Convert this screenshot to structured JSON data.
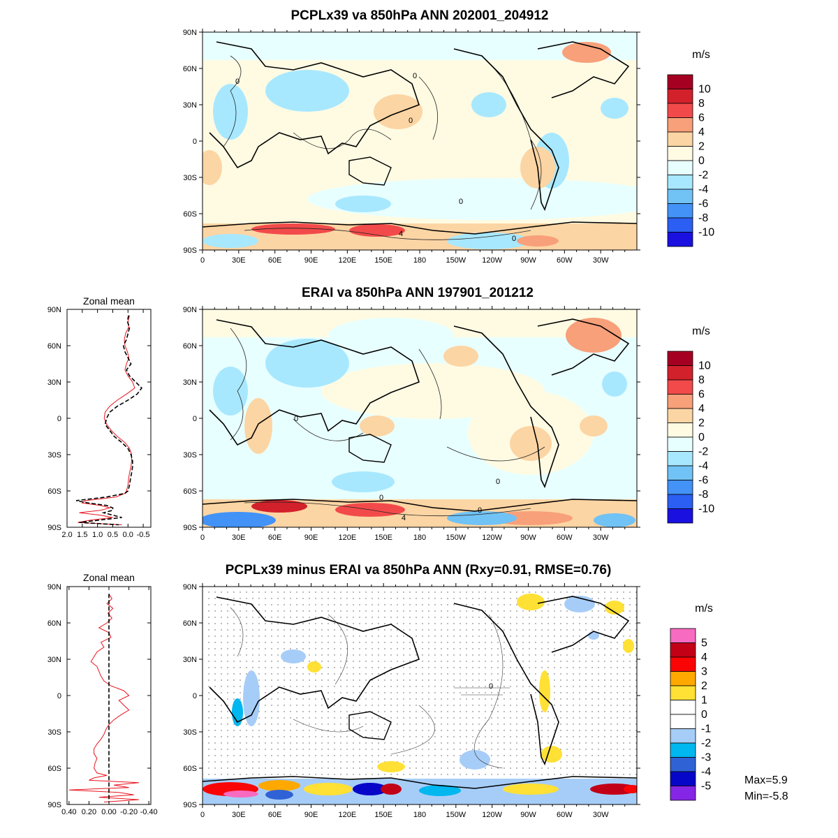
{
  "chart_data": [
    {
      "type": "heatmap",
      "title": "PCPLx39 va 850hPa ANN 202001_204912",
      "x_ticks": [
        "0",
        "30E",
        "60E",
        "90E",
        "120E",
        "150E",
        "180",
        "150W",
        "120W",
        "90W",
        "60W",
        "30W"
      ],
      "y_ticks": [
        "90N",
        "60N",
        "30N",
        "0",
        "30S",
        "60S",
        "90S"
      ],
      "colorbar": {
        "unit": "m/s",
        "labels": [
          "10",
          "8",
          "6",
          "4",
          "2",
          "0",
          "-2",
          "-4",
          "-6",
          "-8",
          "-10"
        ],
        "colors": [
          "#a50021",
          "#d3212c",
          "#f24a4a",
          "#f7a07a",
          "#fcd5a4",
          "#fffbe3",
          "#e8ffff",
          "#a8e8ff",
          "#71c2f5",
          "#4292f7",
          "#2b5ef2",
          "#1a10e0"
        ]
      },
      "contour_labels": [
        "0",
        "0",
        "0",
        "0",
        "4",
        "0"
      ]
    },
    {
      "type": "heatmap",
      "title": "ERAI va 850hPa ANN 197901_201212",
      "x_ticks": [
        "0",
        "30E",
        "60E",
        "90E",
        "120E",
        "150E",
        "180",
        "150W",
        "120W",
        "90W",
        "60W",
        "30W"
      ],
      "y_ticks": [
        "90N",
        "60N",
        "30N",
        "0",
        "30S",
        "60S",
        "90S"
      ],
      "colorbar": {
        "unit": "m/s",
        "labels": [
          "10",
          "8",
          "6",
          "4",
          "2",
          "0",
          "-2",
          "-4",
          "-6",
          "-8",
          "-10"
        ],
        "colors": [
          "#a50021",
          "#d3212c",
          "#f24a4a",
          "#f7a07a",
          "#fcd5a4",
          "#fffbe3",
          "#e8ffff",
          "#a8e8ff",
          "#71c2f5",
          "#4292f7",
          "#2b5ef2",
          "#1a10e0"
        ]
      },
      "contour_labels": [
        "0",
        "0",
        "0",
        "0",
        "4"
      ]
    },
    {
      "type": "heatmap",
      "title": "PCPLx39 minus ERAI va 850hPa ANN (Rxy=0.91, RMSE=0.76)",
      "x_ticks": [
        "0",
        "30E",
        "60E",
        "90E",
        "120E",
        "150E",
        "180",
        "150W",
        "120W",
        "90W",
        "60W",
        "30W"
      ],
      "y_ticks": [
        "90N",
        "60N",
        "30N",
        "0",
        "30S",
        "60S",
        "90S"
      ],
      "colorbar": {
        "unit": "m/s",
        "labels": [
          "5",
          "4",
          "3",
          "2",
          "1",
          "0",
          "-1",
          "-2",
          "-3",
          "-4",
          "-5"
        ],
        "colors": [
          "#f76bc0",
          "#c20016",
          "#fa0505",
          "#ffa800",
          "#ffe035",
          "#ffffff",
          "#ffffff",
          "#a6cdf7",
          "#00b7ef",
          "#2f62d5",
          "#0606c8",
          "#8526e6"
        ]
      },
      "contour_labels": [
        "0"
      ],
      "stats": [
        "Max=5.9",
        "Min=-5.8"
      ]
    },
    {
      "type": "line",
      "title": "Zonal mean",
      "y_ticks": [
        "90N",
        "60N",
        "30N",
        "0",
        "30S",
        "60S",
        "90S"
      ],
      "x_ticks": [
        "2.0",
        "1.5",
        "1.0",
        "0.5",
        "0.0",
        "-0.5"
      ],
      "xlim": [
        2.0,
        -0.75
      ],
      "series": [
        {
          "color": "#e8141e",
          "style": "solid",
          "lat": [
            85,
            80,
            75,
            70,
            65,
            60,
            55,
            50,
            45,
            40,
            35,
            30,
            25,
            20,
            15,
            10,
            5,
            0,
            -5,
            -10,
            -15,
            -20,
            -25,
            -30,
            -35,
            -40,
            -45,
            -50,
            -55,
            -60,
            -62,
            -65,
            -68,
            -70,
            -72,
            -74,
            -76,
            -78,
            -80,
            -82,
            -84,
            -86,
            -88
          ],
          "values": [
            -0.05,
            0.0,
            -0.02,
            0.08,
            0.12,
            0.1,
            0.02,
            -0.03,
            0.05,
            0.1,
            0.0,
            -0.15,
            -0.22,
            0.05,
            0.35,
            0.6,
            0.75,
            0.78,
            0.7,
            0.55,
            0.35,
            0.1,
            -0.05,
            -0.12,
            -0.12,
            -0.1,
            -0.05,
            -0.02,
            0.0,
            0.05,
            0.1,
            0.4,
            1.4,
            1.5,
            0.9,
            0.6,
            0.9,
            1.6,
            0.9,
            0.5,
            1.2,
            1.65,
            0.2
          ]
        },
        {
          "color": "#000000",
          "style": "dashed",
          "lat": [
            85,
            80,
            75,
            70,
            65,
            60,
            55,
            50,
            45,
            40,
            35,
            30,
            25,
            20,
            15,
            10,
            5,
            0,
            -5,
            -10,
            -15,
            -20,
            -25,
            -30,
            -35,
            -40,
            -45,
            -50,
            -55,
            -60,
            -62,
            -65,
            -68,
            -70,
            -72,
            -74,
            -76,
            -78,
            -80,
            -82,
            -84,
            -86,
            -88
          ],
          "values": [
            -0.02,
            0.02,
            -0.05,
            0.0,
            0.05,
            0.15,
            0.1,
            0.0,
            -0.1,
            0.05,
            -0.05,
            -0.25,
            -0.45,
            -0.3,
            0.0,
            0.35,
            0.6,
            0.7,
            0.75,
            0.6,
            0.45,
            0.2,
            0.0,
            -0.1,
            -0.15,
            -0.15,
            -0.12,
            -0.08,
            -0.05,
            0.0,
            0.1,
            0.7,
            1.7,
            1.3,
            0.7,
            0.5,
            0.5,
            0.8,
            0.5,
            0.2,
            0.9,
            1.6,
            0.3
          ]
        }
      ]
    },
    {
      "type": "line",
      "title": "Zonal mean",
      "y_ticks": [
        "90N",
        "60N",
        "30N",
        "0",
        "30S",
        "60S",
        "90S"
      ],
      "x_ticks": [
        "0.40",
        "0.20",
        "0.00",
        "-0.20",
        "-0.40"
      ],
      "xlim": [
        0.42,
        -0.42
      ],
      "series": [
        {
          "color": "#e8141e",
          "style": "solid",
          "lat": [
            84,
            80,
            76,
            72,
            68,
            64,
            60,
            56,
            52,
            48,
            44,
            40,
            36,
            32,
            28,
            24,
            20,
            16,
            12,
            8,
            4,
            0,
            -4,
            -8,
            -12,
            -16,
            -20,
            -24,
            -28,
            -32,
            -36,
            -40,
            -44,
            -48,
            -52,
            -56,
            -60,
            -64,
            -66,
            -68,
            -70,
            -72,
            -74,
            -76,
            -78,
            -80,
            -82,
            -84,
            -86,
            -88
          ],
          "values": [
            0.0,
            -0.03,
            0.02,
            -0.04,
            0.01,
            -0.03,
            0.02,
            0.1,
            0.0,
            -0.02,
            0.08,
            0.05,
            0.12,
            0.15,
            0.18,
            0.12,
            0.1,
            0.08,
            0.05,
            -0.02,
            -0.15,
            -0.2,
            -0.1,
            -0.15,
            -0.2,
            -0.12,
            -0.05,
            0.0,
            0.03,
            0.05,
            0.08,
            0.12,
            0.15,
            0.15,
            0.12,
            0.14,
            0.15,
            0.12,
            0.02,
            0.15,
            0.2,
            -0.3,
            -0.05,
            -0.2,
            0.4,
            -0.1,
            -0.25,
            0.1,
            -0.3,
            0.05
          ]
        },
        {
          "color": "#000000",
          "style": "dashed",
          "lat": [
            84,
            -88
          ],
          "values": [
            0.0,
            0.0
          ]
        }
      ]
    }
  ]
}
